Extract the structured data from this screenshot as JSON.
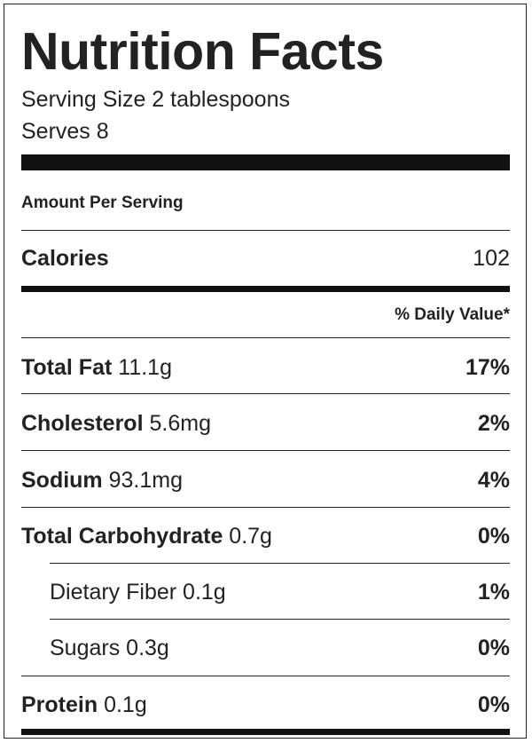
{
  "title": "Nutrition Facts",
  "serving_size": "Serving Size 2 tablespoons",
  "serves": "Serves 8",
  "amount_per_serving": "Amount Per Serving",
  "calories": {
    "label": "Calories",
    "value": "102"
  },
  "daily_value_header": "% Daily Value*",
  "nutrients": [
    {
      "name": "Total Fat",
      "amount": "11.1g",
      "dv": "17%"
    },
    {
      "name": "Cholesterol",
      "amount": "5.6mg",
      "dv": "2%"
    },
    {
      "name": "Sodium",
      "amount": "93.1mg",
      "dv": "4%"
    },
    {
      "name": "Total Carbohydrate",
      "amount": "0.7g",
      "dv": "0%"
    },
    {
      "name": "Dietary Fiber",
      "amount": "0.1g",
      "dv": "1%"
    },
    {
      "name": "Sugars",
      "amount": "0.3g",
      "dv": "0%"
    },
    {
      "name": "Protein",
      "amount": "0.1g",
      "dv": "0%"
    }
  ]
}
